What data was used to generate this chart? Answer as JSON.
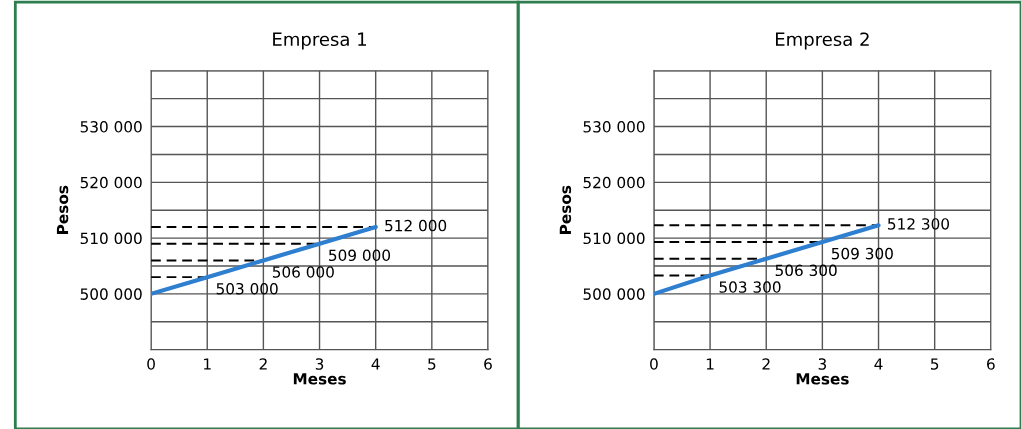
{
  "chart_data": [
    {
      "type": "line",
      "title": "Empresa 1",
      "xlabel": "Meses",
      "ylabel": "Pesos",
      "xlim": [
        0,
        6
      ],
      "xticks": [
        0,
        1,
        2,
        3,
        4,
        5,
        6
      ],
      "ylim": [
        490000,
        540000
      ],
      "yticks": [
        {
          "value": 490000,
          "label": null
        },
        {
          "value": 495000,
          "label": null
        },
        {
          "value": 500000,
          "label": "500 000"
        },
        {
          "value": 505000,
          "label": null
        },
        {
          "value": 510000,
          "label": "510 000"
        },
        {
          "value": 515000,
          "label": null
        },
        {
          "value": 520000,
          "label": "520 000"
        },
        {
          "value": 525000,
          "label": null
        },
        {
          "value": 530000,
          "label": "530 000"
        },
        {
          "value": 535000,
          "label": null
        },
        {
          "value": 540000,
          "label": null
        }
      ],
      "grid": true,
      "series": [
        {
          "x": [
            0,
            1
          ],
          "values": [
            503000,
            503000
          ],
          "color": "#000000",
          "line_style": "dashed"
        },
        {
          "x": [
            0,
            2
          ],
          "values": [
            506000,
            506000
          ],
          "color": "#000000",
          "line_style": "dashed"
        },
        {
          "x": [
            0,
            3
          ],
          "values": [
            509000,
            509000
          ],
          "color": "#000000",
          "line_style": "dashed"
        },
        {
          "x": [
            0,
            4
          ],
          "values": [
            512000,
            512000
          ],
          "color": "#000000",
          "line_style": "dashed"
        },
        {
          "x": [
            0,
            1,
            2,
            3,
            4
          ],
          "values": [
            500000,
            503000,
            506000,
            509000,
            512000
          ],
          "color": "#2f7fd0",
          "line_style": "solid"
        }
      ],
      "annotations": [
        {
          "text": "503 000",
          "x": 1,
          "y": 503000
        },
        {
          "text": "506 000",
          "x": 2,
          "y": 506000
        },
        {
          "text": "509 000",
          "x": 3,
          "y": 509000
        },
        {
          "text": "512 000",
          "x": 4,
          "y": 512000
        }
      ]
    },
    {
      "type": "line",
      "title": "Empresa 2",
      "xlabel": "Meses",
      "ylabel": "Pesos",
      "xlim": [
        0,
        6
      ],
      "xticks": [
        0,
        1,
        2,
        3,
        4,
        5,
        6
      ],
      "ylim": [
        490000,
        540000
      ],
      "yticks": [
        {
          "value": 490000,
          "label": null
        },
        {
          "value": 495000,
          "label": null
        },
        {
          "value": 500000,
          "label": "500 000"
        },
        {
          "value": 505000,
          "label": null
        },
        {
          "value": 510000,
          "label": "510 000"
        },
        {
          "value": 515000,
          "label": null
        },
        {
          "value": 520000,
          "label": "520 000"
        },
        {
          "value": 525000,
          "label": null
        },
        {
          "value": 530000,
          "label": "530 000"
        },
        {
          "value": 535000,
          "label": null
        },
        {
          "value": 540000,
          "label": null
        }
      ],
      "grid": true,
      "series": [
        {
          "x": [
            0,
            1
          ],
          "values": [
            503300,
            503300
          ],
          "color": "#000000",
          "line_style": "dashed"
        },
        {
          "x": [
            0,
            2
          ],
          "values": [
            506300,
            506300
          ],
          "color": "#000000",
          "line_style": "dashed"
        },
        {
          "x": [
            0,
            3
          ],
          "values": [
            509300,
            509300
          ],
          "color": "#000000",
          "line_style": "dashed"
        },
        {
          "x": [
            0,
            4
          ],
          "values": [
            512300,
            512300
          ],
          "color": "#000000",
          "line_style": "dashed"
        },
        {
          "x": [
            0,
            1,
            2,
            3,
            4
          ],
          "values": [
            500000,
            503300,
            506300,
            509300,
            512300
          ],
          "color": "#2f7fd0",
          "line_style": "solid"
        }
      ],
      "annotations": [
        {
          "text": "503 300",
          "x": 1,
          "y": 503300
        },
        {
          "text": "506 300",
          "x": 2,
          "y": 506300
        },
        {
          "text": "509 300",
          "x": 3,
          "y": 509300
        },
        {
          "text": "512 300",
          "x": 4,
          "y": 512300
        }
      ]
    }
  ]
}
